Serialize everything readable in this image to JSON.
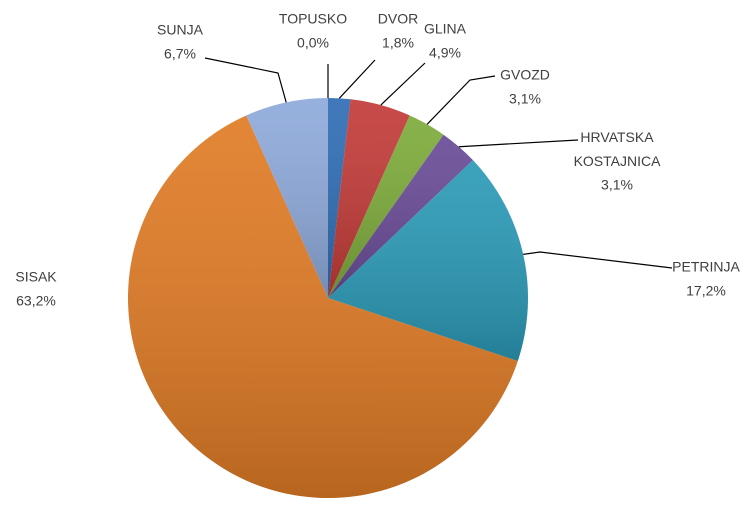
{
  "chart_data": {
    "type": "pie",
    "categories": [
      "DVOR",
      "GLINA",
      "GVOZD",
      "HRVATSKA KOSTAJNICA",
      "PETRINJA",
      "SISAK",
      "SUNJA",
      "TOPUSKO"
    ],
    "values": [
      1.8,
      4.9,
      3.1,
      3.1,
      17.2,
      63.2,
      6.7,
      0.0
    ],
    "value_labels": [
      "1,8%",
      "4,9%",
      "3,1%",
      "3,1%",
      "17,2%",
      "63,2%",
      "6,7%",
      "0,0%"
    ],
    "colors": [
      "#2f6db5",
      "#c23b38",
      "#7dab3a",
      "#694b97",
      "#2b9ab7",
      "#e07b25",
      "#8eaadb",
      "#4a7ebb"
    ]
  }
}
